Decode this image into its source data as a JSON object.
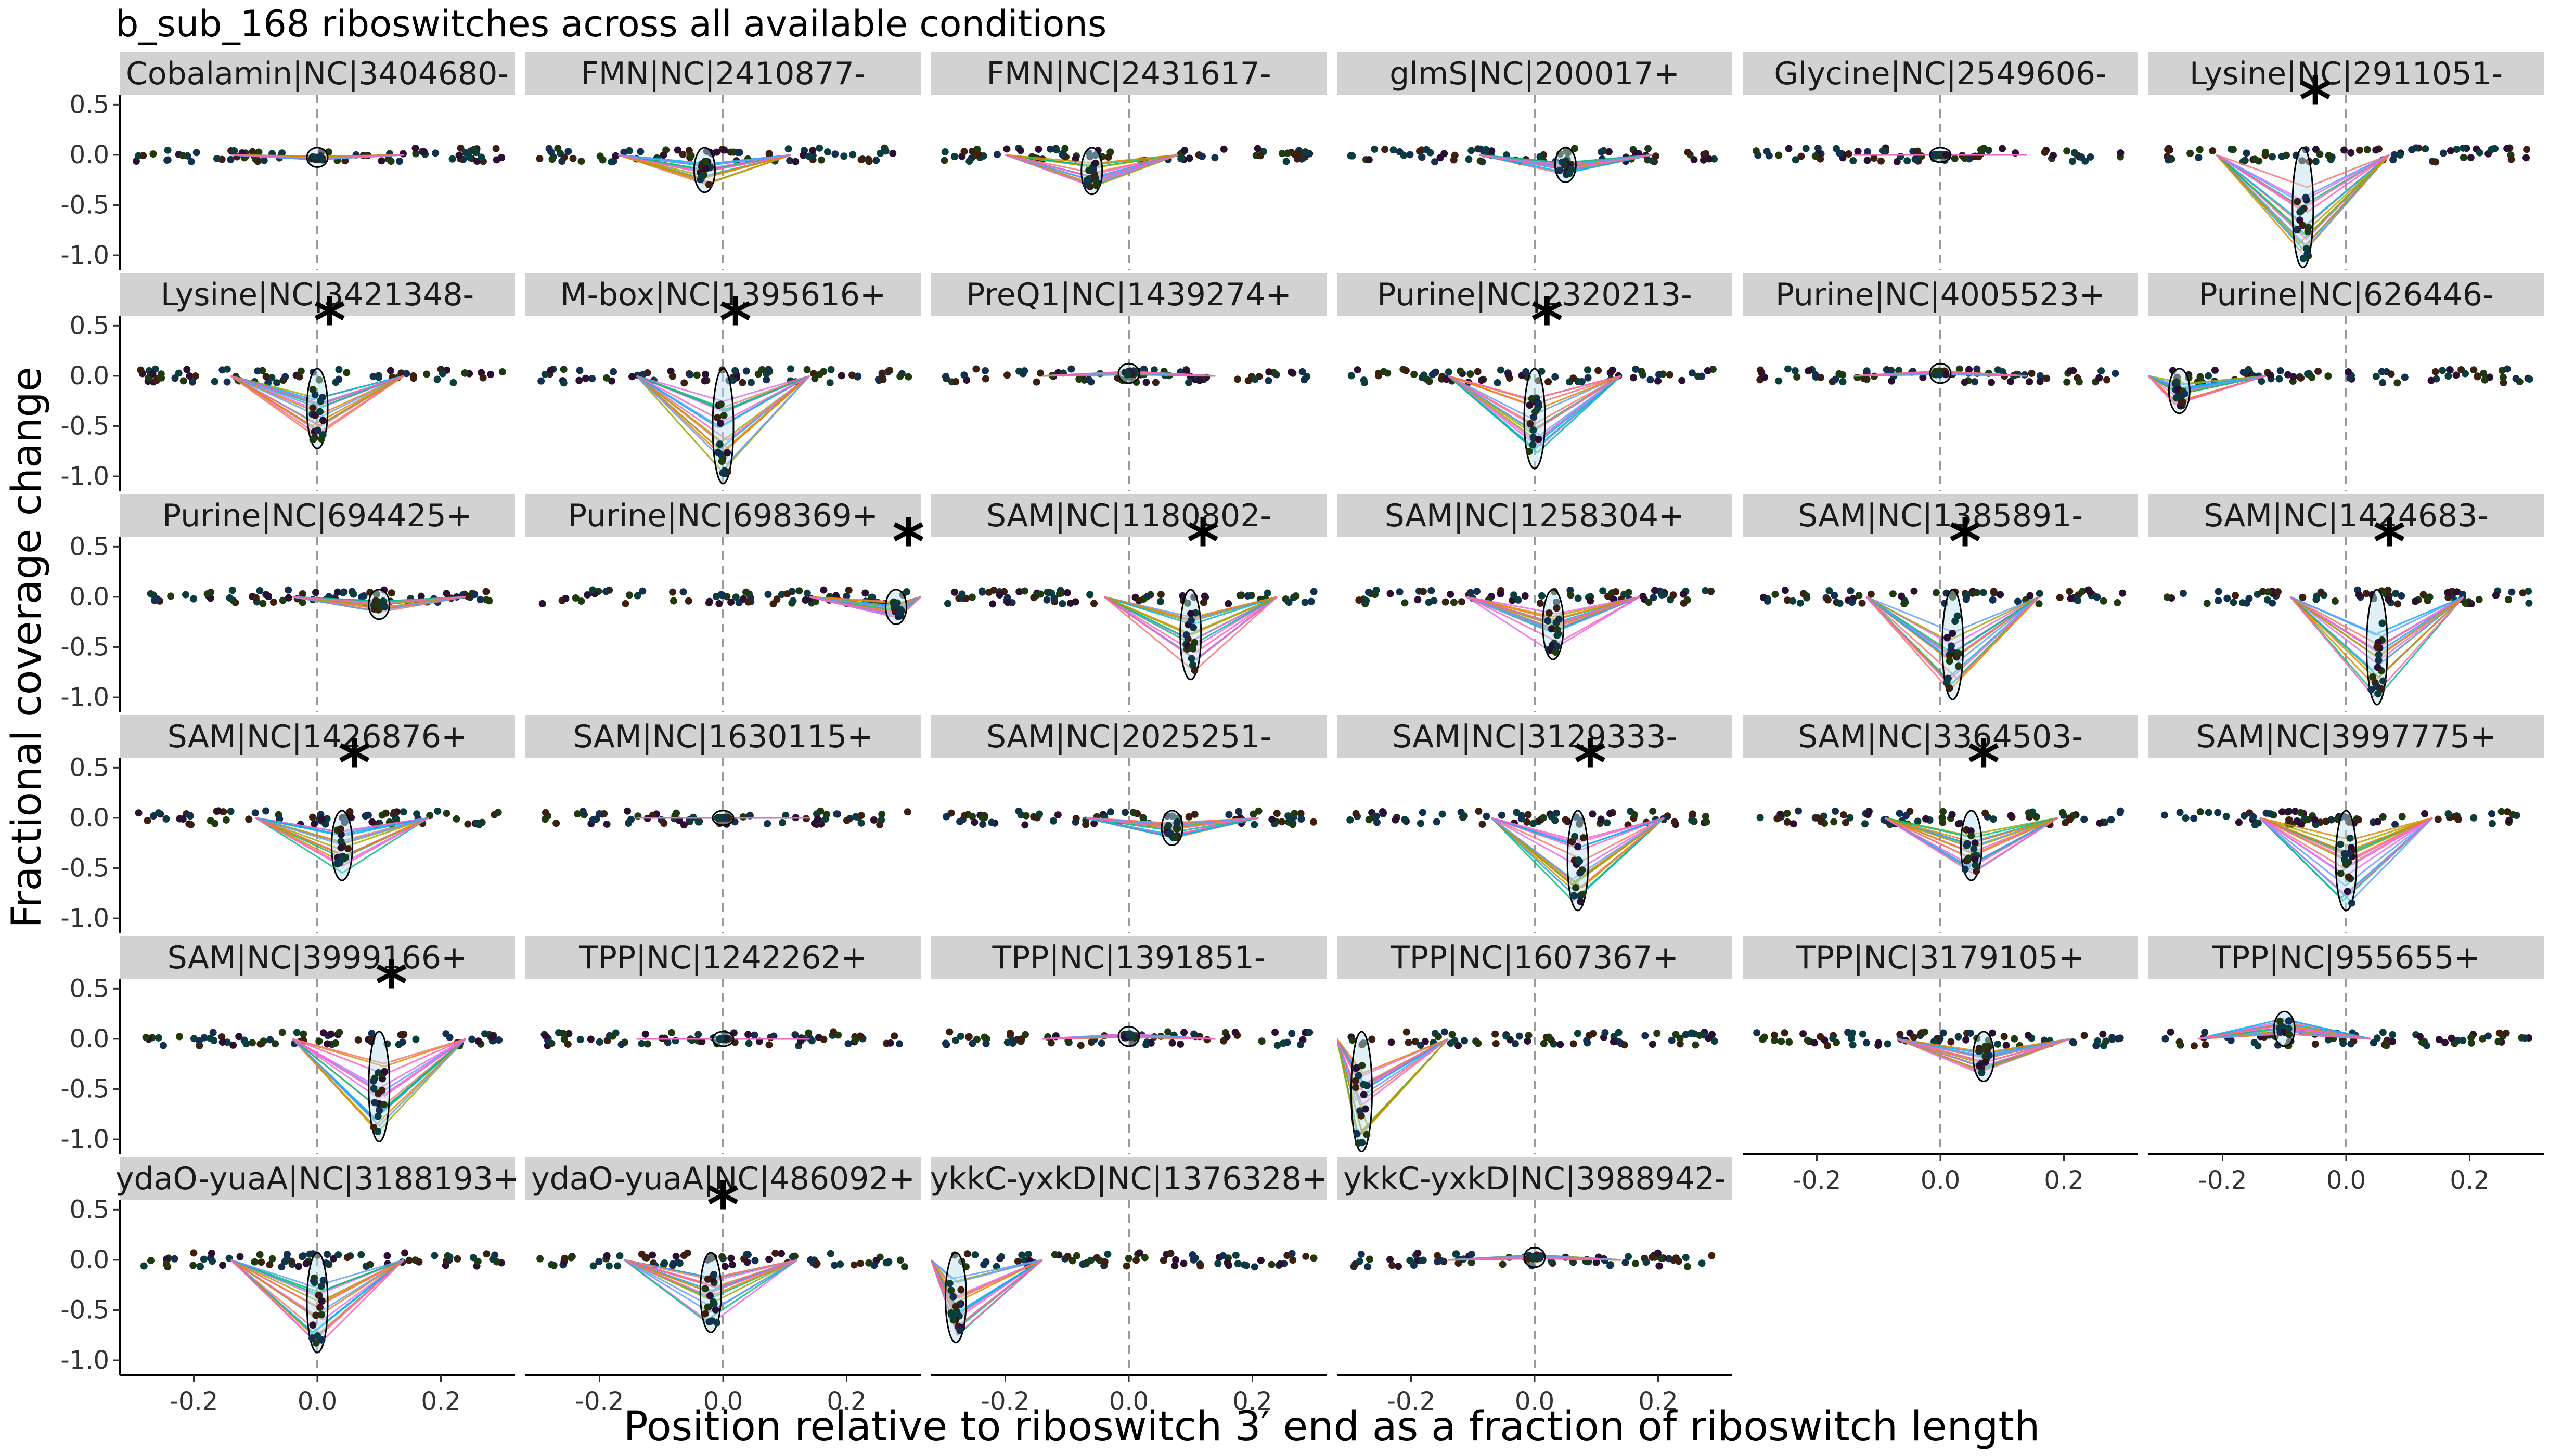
{
  "chart_data": {
    "type": "line",
    "title": "b_sub_168 riboswitches across all available conditions",
    "xlabel": "Position relative to riboswitch 3′ end as a fraction of riboswitch length",
    "ylabel": "Fractional coverage change",
    "xlim": [
      -0.32,
      0.32
    ],
    "ylim": [
      -1.15,
      0.6
    ],
    "x_ticks": [
      -0.2,
      0.0,
      0.2
    ],
    "x_tick_labels": [
      "-0.2",
      "0.0",
      "0.2"
    ],
    "y_ticks": [
      0.5,
      0.0,
      -0.5,
      -1.0
    ],
    "y_tick_labels": [
      "0.5",
      "0.0",
      "-0.5",
      "-1.0"
    ],
    "reference_line_x": 0.0,
    "grid": false,
    "legend": "none",
    "facets": [
      {
        "label": "Cobalamin|NC|3404680-",
        "significant": false,
        "dip_x": 0.0,
        "dip_y": -0.05
      },
      {
        "label": "FMN|NC|2410877-",
        "significant": false,
        "dip_x": -0.03,
        "dip_y": -0.3
      },
      {
        "label": "FMN|NC|2431617-",
        "significant": false,
        "dip_x": -0.06,
        "dip_y": -0.32
      },
      {
        "label": "glmS|NC|200017+",
        "significant": false,
        "dip_x": 0.05,
        "dip_y": -0.2
      },
      {
        "label": "Glycine|NC|2549606-",
        "significant": false,
        "dip_x": 0.0,
        "dip_y": 0.0
      },
      {
        "label": "Lysine|NC|2911051-",
        "significant": true,
        "dip_x": -0.07,
        "dip_y": -1.05
      },
      {
        "label": "Lysine|NC|3421348-",
        "significant": true,
        "dip_x": 0.0,
        "dip_y": -0.65
      },
      {
        "label": "M-box|NC|1395616+",
        "significant": true,
        "dip_x": 0.0,
        "dip_y": -1.0
      },
      {
        "label": "PreQ1|NC|1439274+",
        "significant": false,
        "dip_x": 0.0,
        "dip_y": 0.05
      },
      {
        "label": "Purine|NC|2320213-",
        "significant": true,
        "dip_x": 0.0,
        "dip_y": -0.85
      },
      {
        "label": "Purine|NC|4005523+",
        "significant": false,
        "dip_x": 0.0,
        "dip_y": 0.05
      },
      {
        "label": "Purine|NC|626446-",
        "significant": false,
        "dip_x": -0.27,
        "dip_y": -0.3
      },
      {
        "label": "Purine|NC|694425+",
        "significant": false,
        "dip_x": 0.1,
        "dip_y": -0.15
      },
      {
        "label": "Purine|NC|698369+",
        "significant": true,
        "dip_x": 0.28,
        "dip_y": -0.2
      },
      {
        "label": "SAM|NC|1180802-",
        "significant": true,
        "dip_x": 0.1,
        "dip_y": -0.75
      },
      {
        "label": "SAM|NC|1258304+",
        "significant": false,
        "dip_x": 0.03,
        "dip_y": -0.55
      },
      {
        "label": "SAM|NC|1385891-",
        "significant": true,
        "dip_x": 0.02,
        "dip_y": -0.95
      },
      {
        "label": "SAM|NC|1424683-",
        "significant": true,
        "dip_x": 0.05,
        "dip_y": -1.0
      },
      {
        "label": "SAM|NC|1426876+",
        "significant": true,
        "dip_x": 0.04,
        "dip_y": -0.55
      },
      {
        "label": "SAM|NC|1630115+",
        "significant": false,
        "dip_x": 0.0,
        "dip_y": 0.0
      },
      {
        "label": "SAM|NC|2025251-",
        "significant": false,
        "dip_x": 0.07,
        "dip_y": -0.2
      },
      {
        "label": "SAM|NC|3129333-",
        "significant": true,
        "dip_x": 0.07,
        "dip_y": -0.85
      },
      {
        "label": "SAM|NC|3364503-",
        "significant": true,
        "dip_x": 0.05,
        "dip_y": -0.55
      },
      {
        "label": "SAM|NC|3997775+",
        "significant": false,
        "dip_x": 0.0,
        "dip_y": -0.85
      },
      {
        "label": "SAM|NC|3999166+",
        "significant": true,
        "dip_x": 0.1,
        "dip_y": -0.95
      },
      {
        "label": "TPP|NC|1242262+",
        "significant": false,
        "dip_x": 0.0,
        "dip_y": 0.0
      },
      {
        "label": "TPP|NC|1391851-",
        "significant": false,
        "dip_x": 0.0,
        "dip_y": 0.05
      },
      {
        "label": "TPP|NC|1607367+",
        "significant": false,
        "dip_x": -0.28,
        "dip_y": -1.05
      },
      {
        "label": "TPP|NC|3179105+",
        "significant": false,
        "dip_x": 0.07,
        "dip_y": -0.35
      },
      {
        "label": "TPP|NC|955655+",
        "significant": false,
        "dip_x": -0.1,
        "dip_y": 0.2
      },
      {
        "label": "ydaO-yuaA|NC|3188193+",
        "significant": false,
        "dip_x": 0.0,
        "dip_y": -0.85
      },
      {
        "label": "ydaO-yuaA|NC|486092+",
        "significant": true,
        "dip_x": -0.02,
        "dip_y": -0.65
      },
      {
        "label": "ykkC-yxkD|NC|1376328+",
        "significant": false,
        "dip_x": -0.28,
        "dip_y": -0.75
      },
      {
        "label": "ykkC-yxkD|NC|3988942-",
        "significant": false,
        "dip_x": 0.0,
        "dip_y": 0.05
      }
    ],
    "significance_marker": "*"
  }
}
